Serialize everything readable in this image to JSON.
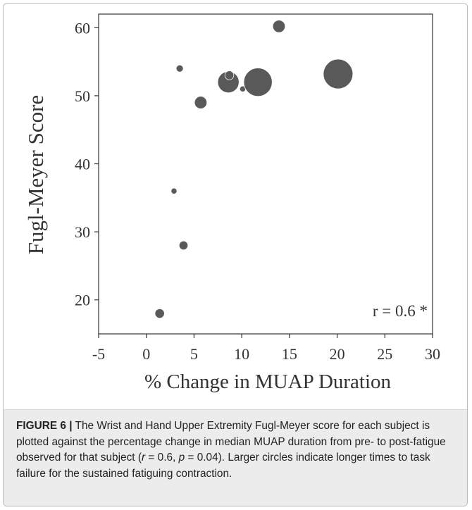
{
  "chart_data": {
    "type": "scatter",
    "title": "",
    "xlabel": "% Change in MUAP Duration",
    "ylabel": "Fugl-Meyer Score",
    "xlim": [
      -5,
      30
    ],
    "ylim": [
      15,
      62
    ],
    "xticks": [
      "-5",
      "0",
      "5",
      "10",
      "15",
      "20",
      "25",
      "30"
    ],
    "yticks": [
      "20",
      "30",
      "40",
      "50",
      "60"
    ],
    "grid": false,
    "legend": "none",
    "annotation": "r = 0.6 *",
    "marker_color": "#595959",
    "points": [
      {
        "x": 1.4,
        "y": 18,
        "size": 1.6
      },
      {
        "x": 2.9,
        "y": 36,
        "size": 1.0
      },
      {
        "x": 3.5,
        "y": 54,
        "size": 1.2
      },
      {
        "x": 3.9,
        "y": 28,
        "size": 1.5
      },
      {
        "x": 5.7,
        "y": 49,
        "size": 2.1
      },
      {
        "x": 8.6,
        "y": 52,
        "size": 3.6
      },
      {
        "x": 8.7,
        "y": 53,
        "size": 1.5
      },
      {
        "x": 10.1,
        "y": 51,
        "size": 1.0
      },
      {
        "x": 11.7,
        "y": 52,
        "size": 4.8
      },
      {
        "x": 13.9,
        "y": 60.2,
        "size": 2.1
      },
      {
        "x": 20.1,
        "y": 53.2,
        "size": 5.0
      }
    ]
  },
  "caption": {
    "label": "FIGURE 6 |",
    "text_1": " The Wrist and Hand Upper Extremity Fugl-Meyer score for each subject is plotted against the percentage change in median MUAP duration from pre- to post-fatigue observed for that subject (",
    "r_symbol": "r",
    "text_2": " = 0.6, ",
    "p_symbol": "p",
    "text_3": " = 0.04). Larger circles indicate longer times to task failure for the sustained fatiguing contraction."
  }
}
